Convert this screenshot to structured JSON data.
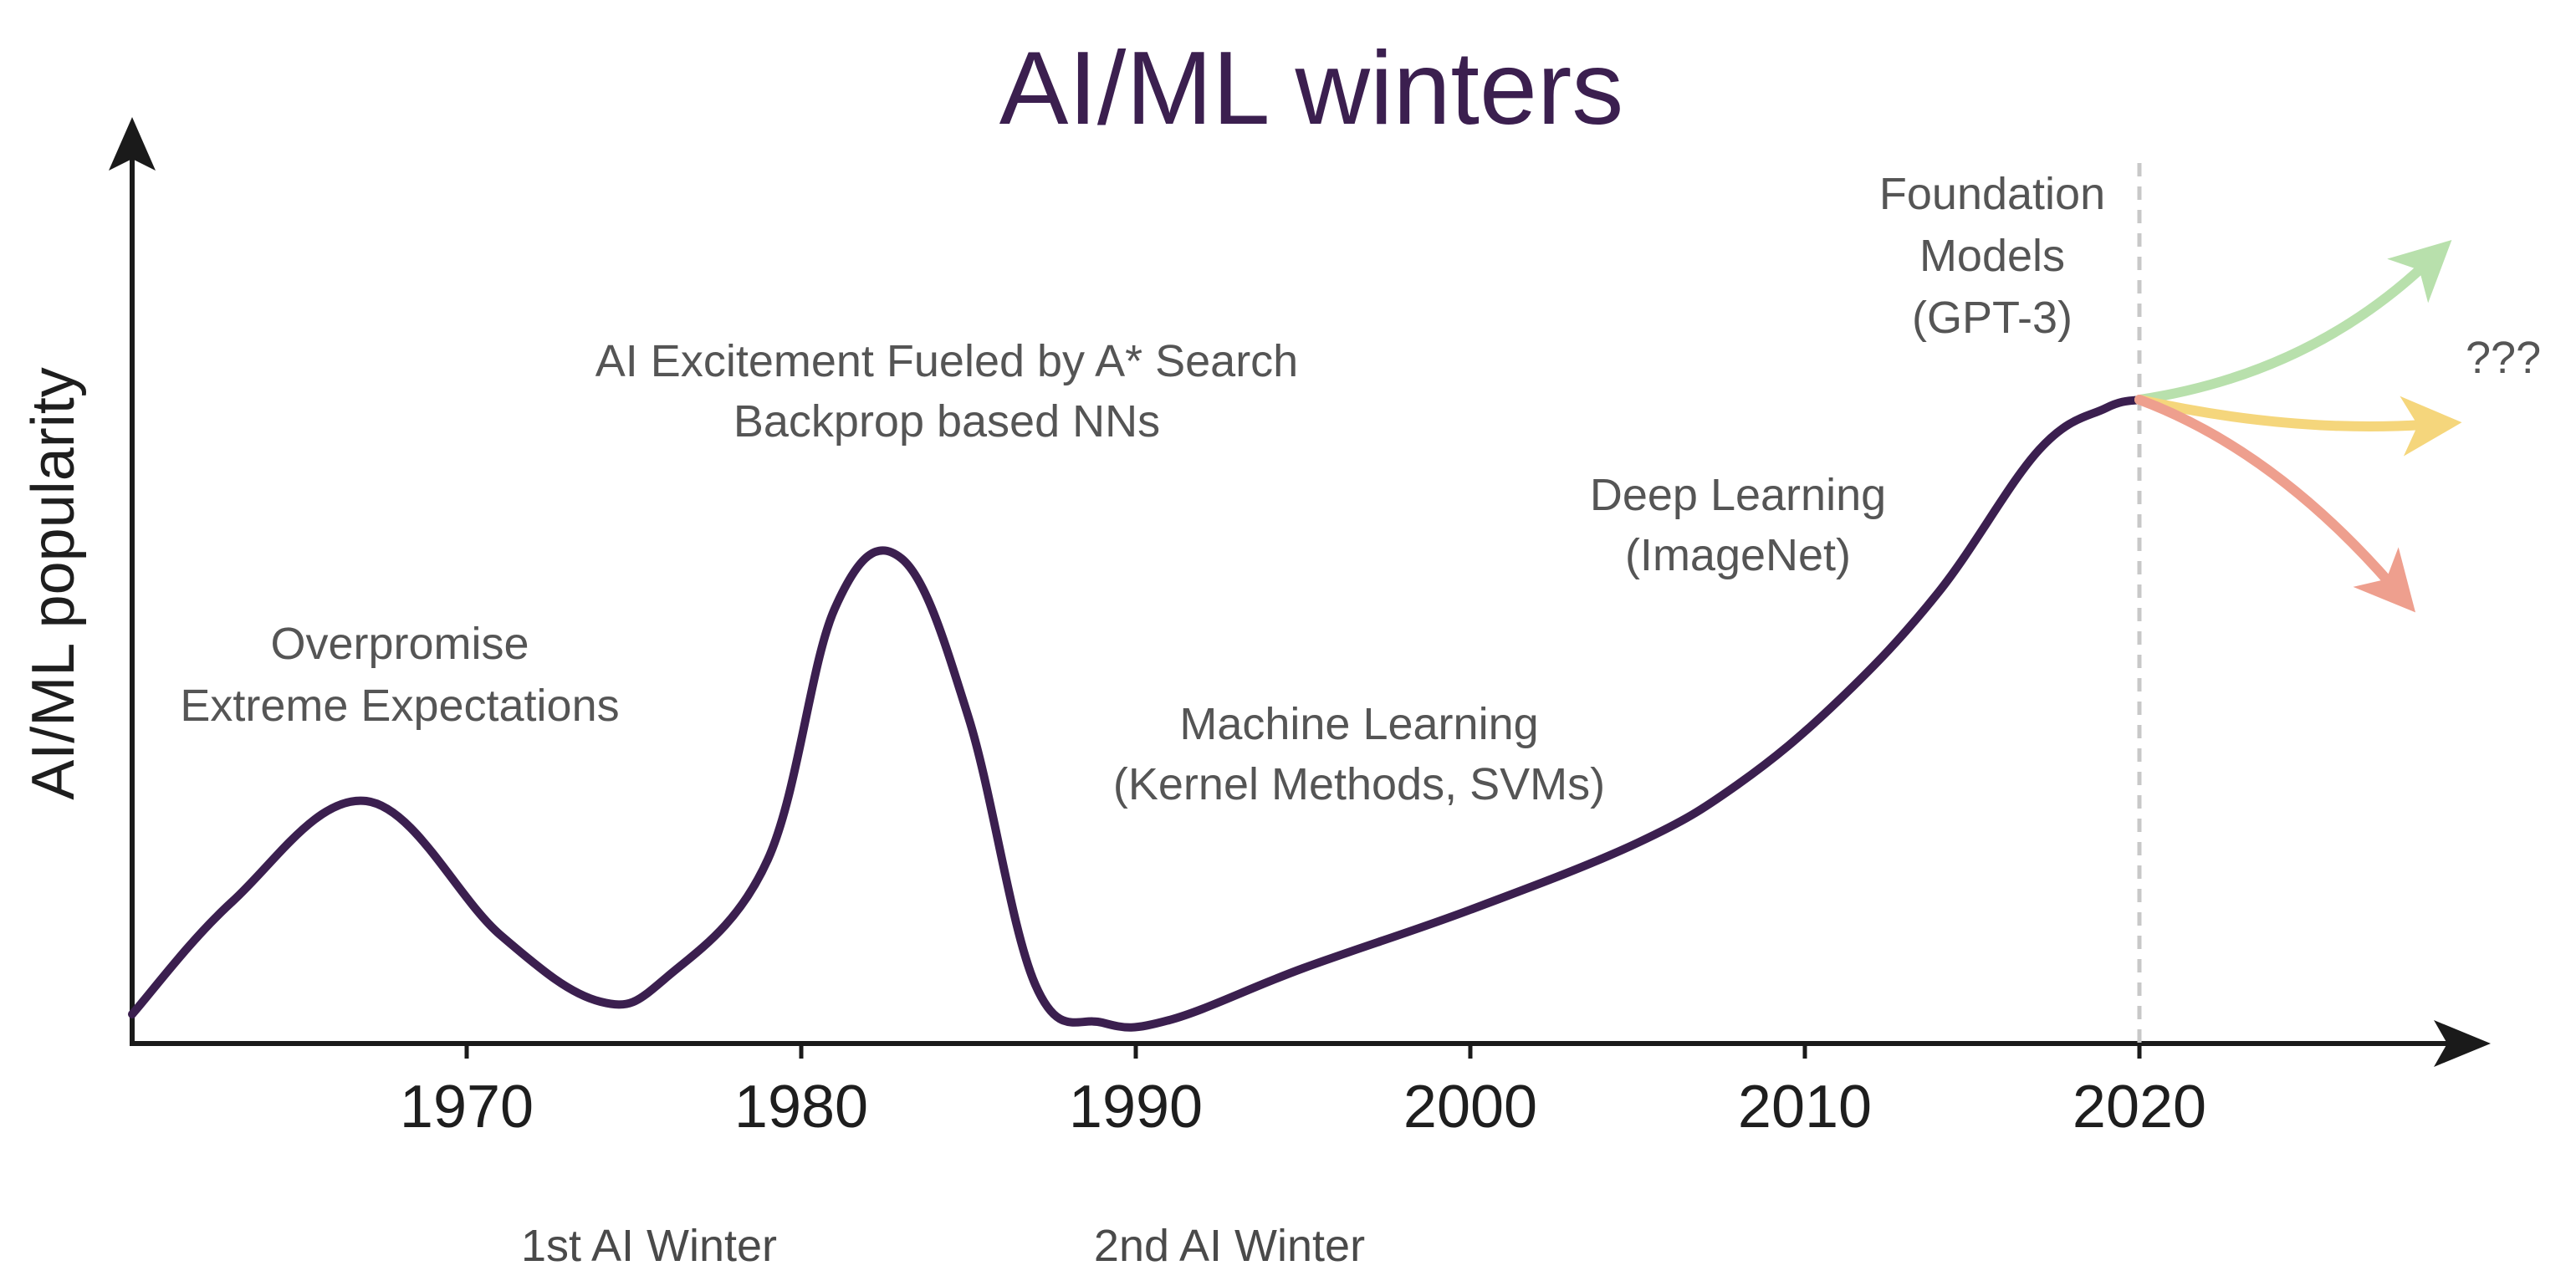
{
  "chart_data": {
    "type": "line",
    "title": "AI/ML winters",
    "xlabel": "",
    "ylabel": "AI/ML popularity",
    "xlim": [
      1960,
      2030
    ],
    "ylim": [
      0,
      100
    ],
    "x_ticks": [
      "1970",
      "1980",
      "1990",
      "2000",
      "2010",
      "2020"
    ],
    "y_ticks_shown": false,
    "grid": false,
    "series": [
      {
        "color": "#3b1f4f",
        "x": [
          1960,
          1963,
          1967,
          1971,
          1974,
          1976,
          1979,
          1981,
          1983,
          1985,
          1987,
          1989,
          1991,
          1995,
          2000,
          2005,
          2008,
          2011,
          2014,
          2017,
          2019,
          2020
        ],
        "y": [
          3.5,
          17,
          29,
          13,
          5,
          8,
          22,
          52,
          58,
          39,
          7,
          2.5,
          2.8,
          9,
          16,
          24,
          31,
          41,
          54,
          71,
          76,
          77
        ]
      }
    ],
    "future_arrows": [
      {
        "color": "#b8e0ac",
        "x": [
          2020,
          2025,
          2028.5
        ],
        "y": [
          77,
          80,
          93
        ]
      },
      {
        "color": "#f5d67c",
        "x": [
          2020,
          2024.5,
          2028.5
        ],
        "y": [
          77,
          73,
          74
        ]
      },
      {
        "color": "#ee9f8e",
        "x": [
          2020,
          2024,
          2027.5
        ],
        "y": [
          77,
          71,
          55
        ]
      }
    ],
    "vertical_line_x": 2020,
    "annotations": {
      "overpromise": [
        "Overpromise",
        "Extreme Expectations"
      ],
      "ai_excitement": [
        "AI Excitement Fueled by A* Search",
        "Backprop based NNs"
      ],
      "machine_learning": [
        "Machine Learning",
        "(Kernel Methods, SVMs)"
      ],
      "deep_learning": [
        "Deep Learning",
        "(ImageNet)"
      ],
      "foundation_models": [
        "Foundation",
        "Models",
        "(GPT-3)"
      ],
      "unknown_future": "???"
    },
    "winters": [
      "1st AI Winter",
      "2nd AI Winter"
    ]
  }
}
